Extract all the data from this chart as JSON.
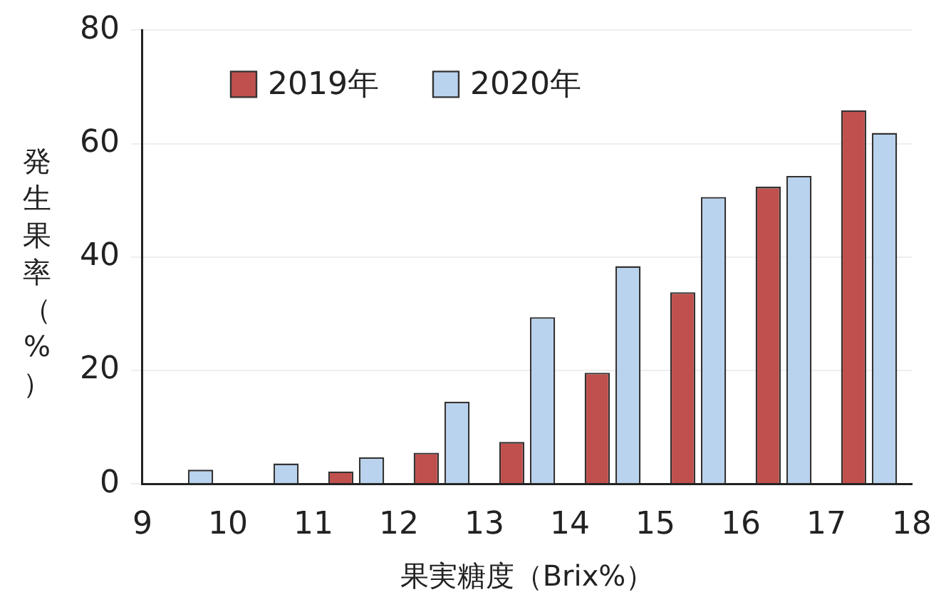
{
  "chart_data": {
    "type": "bar",
    "xlabel": "果実糖度（Brix%）",
    "ylabel": "発生果率（%）",
    "x": [
      9.5,
      10.5,
      11.5,
      12.5,
      13.5,
      14.5,
      15.5,
      16.5,
      17.5
    ],
    "series": [
      {
        "name": "2019年",
        "color": "#c0504d",
        "values": [
          0,
          0,
          2.2,
          5.5,
          7.4,
          19.6,
          33.8,
          52.4,
          65.9
        ]
      },
      {
        "name": "2020年",
        "color": "#b9d3ef",
        "values": [
          2.5,
          3.6,
          4.7,
          14.5,
          29.4,
          38.4,
          50.6,
          54.3,
          61.9
        ]
      }
    ],
    "xlim": [
      9,
      18
    ],
    "xticks": [
      9,
      10,
      11,
      12,
      13,
      14,
      15,
      16,
      17,
      18
    ],
    "ylim": [
      0,
      80
    ],
    "yticks": [
      0,
      20,
      40,
      60,
      80
    ],
    "grid": "y",
    "legend": "top left"
  }
}
